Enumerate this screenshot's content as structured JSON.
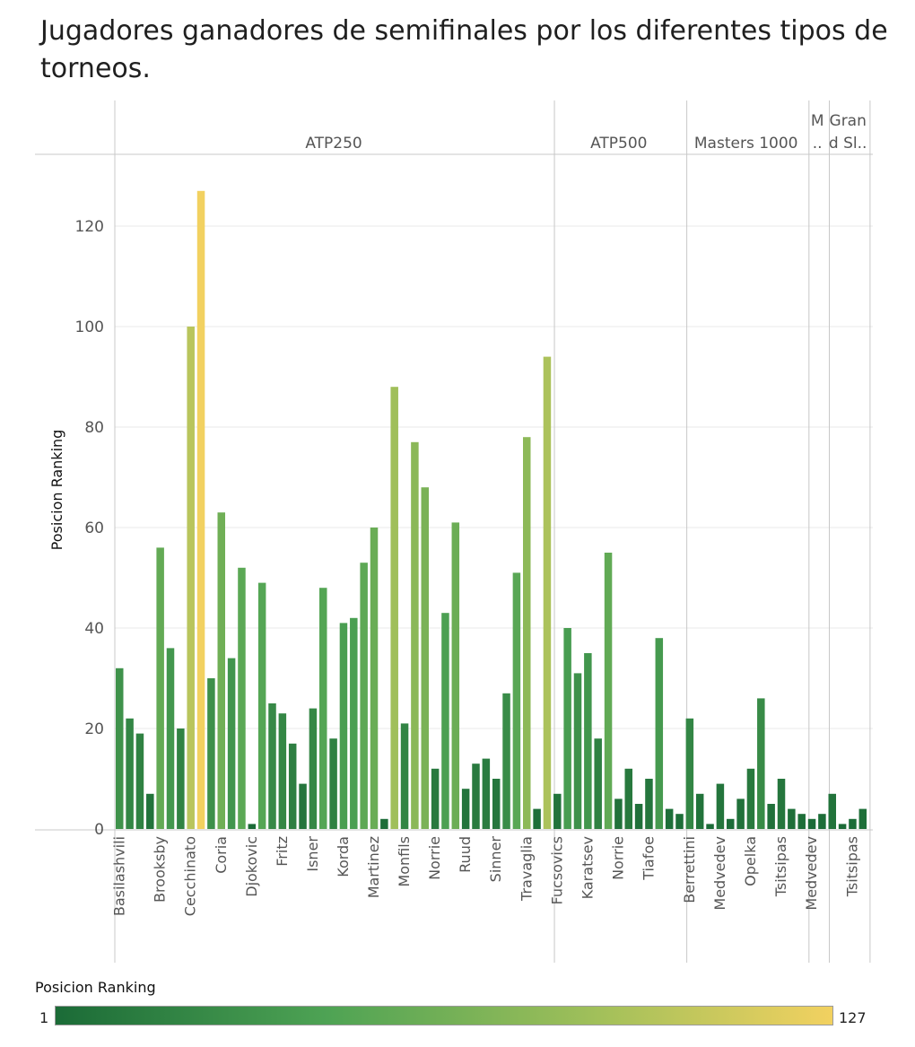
{
  "title": "Jugadores ganadores de semifinales por los diferentes tipos de torneos.",
  "legend": {
    "title": "Posicion Ranking",
    "min_label": "1",
    "max_label": "127"
  },
  "colors": {
    "low": "#1b6b37",
    "mid": "#4ea354",
    "high_mid": "#a2c05a",
    "high": "#f2d160",
    "grid": "#e8e8e8",
    "divider": "#c8c8c8",
    "text": "#555555"
  },
  "chart_data": {
    "type": "bar",
    "ylabel": "Posicion Ranking",
    "ylim": [
      0,
      130
    ],
    "yticks": [
      0,
      20,
      40,
      60,
      80,
      100,
      120
    ],
    "color_scale": {
      "min": 1,
      "max": 127
    },
    "grid": true,
    "panels": [
      {
        "name": "ATP250",
        "values": [
          32,
          22,
          19,
          7,
          56,
          36,
          20,
          100,
          127,
          30,
          63,
          34,
          52,
          1,
          49,
          25,
          23,
          17,
          9,
          24,
          48,
          18,
          41,
          42,
          53,
          60,
          2,
          88,
          21,
          77,
          68,
          12,
          43,
          61,
          8,
          13,
          14,
          10,
          27,
          51,
          78,
          4,
          94
        ],
        "labels": [
          {
            "i": 0,
            "t": "Basilashvili"
          },
          {
            "i": 4,
            "t": "Brooksby"
          },
          {
            "i": 7,
            "t": "Cecchinato"
          },
          {
            "i": 10,
            "t": "Coria"
          },
          {
            "i": 13,
            "t": "Djokovic"
          },
          {
            "i": 16,
            "t": "Fritz"
          },
          {
            "i": 19,
            "t": "Isner"
          },
          {
            "i": 22,
            "t": "Korda"
          },
          {
            "i": 25,
            "t": "Martinez"
          },
          {
            "i": 28,
            "t": "Monfils"
          },
          {
            "i": 31,
            "t": "Norrie"
          },
          {
            "i": 34,
            "t": "Ruud"
          },
          {
            "i": 37,
            "t": "Sinner"
          },
          {
            "i": 40,
            "t": "Travaglia"
          }
        ]
      },
      {
        "name": "ATP500",
        "values": [
          7,
          40,
          31,
          35,
          18,
          55,
          6,
          12,
          5,
          10,
          38,
          4,
          3
        ],
        "labels": [
          {
            "i": 0,
            "t": "Fucsovics"
          },
          {
            "i": 3,
            "t": "Karatsev"
          },
          {
            "i": 6,
            "t": "Norrie"
          },
          {
            "i": 9,
            "t": "Tiafoe"
          }
        ]
      },
      {
        "name": "Masters 1000",
        "values": [
          22,
          7,
          1,
          9,
          2,
          6,
          12,
          26,
          5,
          10,
          4,
          3
        ],
        "labels": [
          {
            "i": 0,
            "t": "Berrettini"
          },
          {
            "i": 3,
            "t": "Medvedev"
          },
          {
            "i": 6,
            "t": "Opelka"
          },
          {
            "i": 9,
            "t": "Tsitsipas"
          }
        ]
      },
      {
        "name": "M\n..",
        "values": [
          2,
          3
        ],
        "labels": [
          {
            "i": 0,
            "t": "Medvedev"
          }
        ]
      },
      {
        "name": "Gran\nd Sl..",
        "values": [
          7,
          1,
          2,
          4
        ],
        "labels": [
          {
            "i": 2,
            "t": "Tsitsipas"
          }
        ]
      }
    ]
  }
}
